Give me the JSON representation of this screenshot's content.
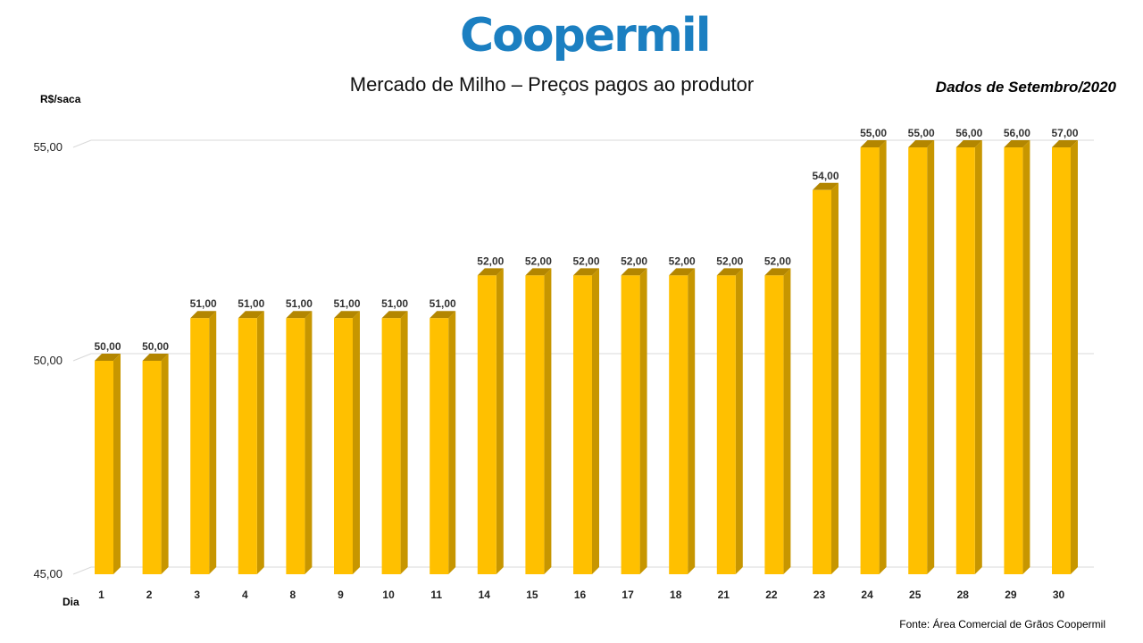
{
  "brand": {
    "logo_text": "Coopermil",
    "logo_color": "#1b7fc1"
  },
  "colors": {
    "bar_front": "#ffc000",
    "bar_side": "#c79600",
    "bar_top": "#b38600",
    "grid": "#d9d9d9"
  },
  "chart_data": {
    "type": "bar",
    "title": "Mercado de Milho – Preços pagos ao produtor",
    "subtitle": "Dados de Setembro/2020",
    "ylabel": "R$/saca",
    "xlabel": "Dia",
    "ylim": [
      45,
      55
    ],
    "yticks": [
      "45,00",
      "50,00",
      "55,00"
    ],
    "ytick_values": [
      45,
      50,
      55
    ],
    "grid": true,
    "categories": [
      "1",
      "2",
      "3",
      "4",
      "8",
      "9",
      "10",
      "11",
      "14",
      "15",
      "16",
      "17",
      "18",
      "21",
      "22",
      "23",
      "24",
      "25",
      "28",
      "29",
      "30"
    ],
    "values": [
      50,
      50,
      51,
      51,
      51,
      51,
      51,
      51,
      52,
      52,
      52,
      52,
      52,
      52,
      52,
      54,
      55,
      55,
      56,
      56,
      57
    ],
    "data_labels": [
      "50,00",
      "50,00",
      "51,00",
      "51,00",
      "51,00",
      "51,00",
      "51,00",
      "51,00",
      "52,00",
      "52,00",
      "52,00",
      "52,00",
      "52,00",
      "52,00",
      "52,00",
      "54,00",
      "55,00",
      "55,00",
      "56,00",
      "56,00",
      "57,00"
    ],
    "source": "Fonte: Área Comercial de Grãos Coopermil"
  }
}
